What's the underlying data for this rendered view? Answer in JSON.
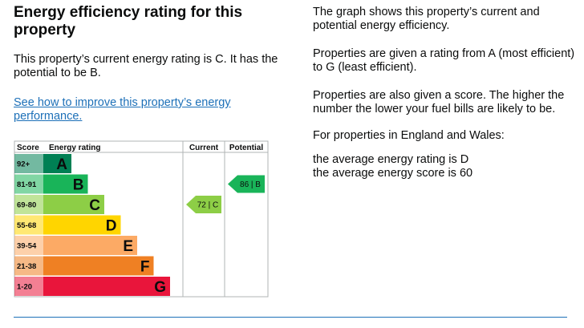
{
  "heading": "Energy efficiency rating for this property",
  "intro": "This property’s current energy rating is C. It has the potential to be B.",
  "improve_link": "See how to improve this property’s energy performance.",
  "info": {
    "p1": "The graph shows this property’s current and potential energy efficiency.",
    "p2": "Properties are given a rating from A (most efficient) to G (least efficient).",
    "p3": "Properties are also given a score. The higher the number the lower your fuel bills are likely to be.",
    "p4": "For properties in England and Wales:",
    "avg_rating": "the average energy rating is D",
    "avg_score": "the average energy score is 60"
  },
  "chart_data": {
    "type": "table",
    "headers": {
      "score": "Score",
      "rating": "Energy rating",
      "current": "Current",
      "potential": "Potential"
    },
    "bands": [
      {
        "range": "92+",
        "letter": "A",
        "color": "#008054"
      },
      {
        "range": "81-91",
        "letter": "B",
        "color": "#19b459"
      },
      {
        "range": "69-80",
        "letter": "C",
        "color": "#8dce46"
      },
      {
        "range": "55-68",
        "letter": "D",
        "color": "#ffd500"
      },
      {
        "range": "39-54",
        "letter": "E",
        "color": "#fcaa65"
      },
      {
        "range": "21-38",
        "letter": "F",
        "color": "#ef8023"
      },
      {
        "range": "1-20",
        "letter": "G",
        "color": "#e9153b"
      }
    ],
    "current": {
      "label": "72 | C",
      "score": 72,
      "letter": "C",
      "color": "#8dce46"
    },
    "potential": {
      "label": "86 | B",
      "score": 86,
      "letter": "B",
      "color": "#19b459"
    }
  }
}
